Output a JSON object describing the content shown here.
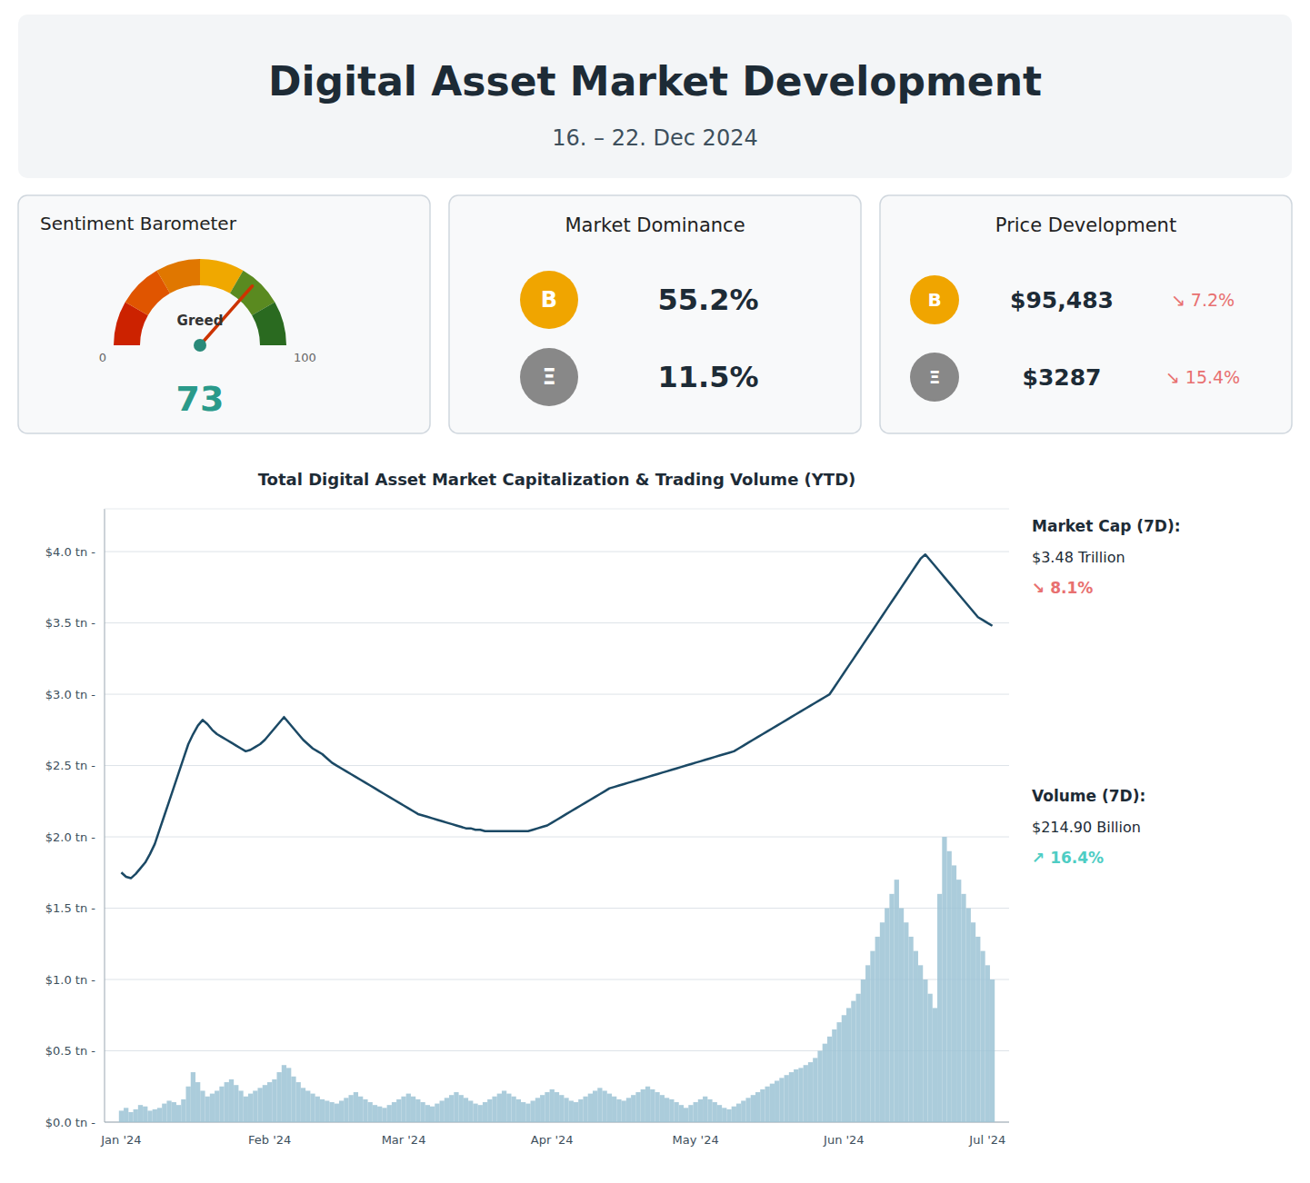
{
  "title": "Digital Asset Market Development",
  "subtitle": "16. – 22. Dec 2024",
  "chart_data": [
    {
      "type": "gauge",
      "title": "Sentiment Barometer",
      "value": 73,
      "annotations": [
        "Greed"
      ],
      "ylim": [
        0,
        100
      ],
      "yticks": [
        0,
        100
      ],
      "colors": [
        "#cc2200",
        "#e05500",
        "#e07700",
        "#f0a800",
        "#5a8a20",
        "#2a6a20"
      ]
    },
    {
      "type": "stat",
      "title": "Market Dominance",
      "categories": [
        "B",
        "Ξ"
      ],
      "values": [
        55.2,
        11.5
      ],
      "value_labels": [
        "55.2%",
        "11.5%"
      ],
      "colors": [
        "#f0a500",
        "#888888"
      ],
      "data_labels": true
    },
    {
      "type": "stat",
      "title": "Price Development",
      "categories": [
        "B",
        "Ξ"
      ],
      "values": [
        95483,
        3287
      ],
      "value_labels": [
        "$95,483",
        "$3287"
      ],
      "colors": [
        "#f0a500",
        "#888888"
      ],
      "data_labels": true,
      "annotations": [
        {
          "text": "↘ 7.2%",
          "color": "#e87070"
        },
        {
          "text": "↘ 15.4%",
          "color": "#e87070"
        }
      ]
    },
    {
      "type": "bar",
      "title": "Total Digital Asset Market Capitalization & Trading Volume (YTD)",
      "categories": [
        "Jan '24",
        null,
        null,
        null,
        null,
        null,
        null,
        null,
        null,
        null,
        null,
        null,
        null,
        null,
        null,
        null,
        null,
        null,
        null,
        null,
        null,
        null,
        null,
        null,
        null,
        null,
        null,
        null,
        null,
        null,
        null,
        "Feb '24",
        null,
        null,
        null,
        null,
        null,
        null,
        null,
        null,
        null,
        null,
        null,
        null,
        null,
        null,
        null,
        null,
        null,
        null,
        null,
        null,
        null,
        null,
        null,
        null,
        null,
        null,
        null,
        "Mar '24",
        null,
        null,
        null,
        null,
        null,
        null,
        null,
        null,
        null,
        null,
        null,
        null,
        null,
        null,
        null,
        null,
        null,
        null,
        null,
        null,
        null,
        null,
        null,
        null,
        null,
        null,
        null,
        null,
        null,
        null,
        "Apr '24",
        null,
        null,
        null,
        null,
        null,
        null,
        null,
        null,
        null,
        null,
        null,
        null,
        null,
        null,
        null,
        null,
        null,
        null,
        null,
        null,
        null,
        null,
        null,
        null,
        null,
        null,
        null,
        null,
        null,
        "May '24",
        null,
        null,
        null,
        null,
        null,
        null,
        null,
        null,
        null,
        null,
        null,
        null,
        null,
        null,
        null,
        null,
        null,
        null,
        null,
        null,
        null,
        null,
        null,
        null,
        null,
        null,
        null,
        null,
        null,
        null,
        "Jun '24",
        null,
        null,
        null,
        null,
        null,
        null,
        null,
        null,
        null,
        null,
        null,
        null,
        null,
        null,
        null,
        null,
        null,
        null,
        null,
        null,
        null,
        null,
        null,
        null,
        null,
        null,
        null,
        null,
        null,
        "Jul '24",
        null
      ],
      "series": [
        {
          "type": "bar",
          "color": "#9cc3d5",
          "values": [
            0.08,
            0.1,
            0.07,
            0.09,
            0.12,
            0.11,
            0.08,
            0.09,
            0.1,
            0.13,
            0.15,
            0.14,
            0.12,
            0.16,
            0.25,
            0.35,
            0.28,
            0.22,
            0.18,
            0.2,
            0.22,
            0.25,
            0.28,
            0.3,
            0.26,
            0.22,
            0.18,
            0.2,
            0.22,
            0.24,
            0.26,
            0.28,
            0.3,
            0.35,
            0.4,
            0.38,
            0.32,
            0.28,
            0.24,
            0.22,
            0.2,
            0.18,
            0.16,
            0.15,
            0.14,
            0.13,
            0.15,
            0.17,
            0.19,
            0.21,
            0.18,
            0.16,
            0.14,
            0.12,
            0.11,
            0.1,
            0.12,
            0.14,
            0.16,
            0.18,
            0.2,
            0.18,
            0.16,
            0.14,
            0.12,
            0.11,
            0.13,
            0.15,
            0.17,
            0.19,
            0.21,
            0.19,
            0.17,
            0.15,
            0.13,
            0.12,
            0.14,
            0.16,
            0.18,
            0.2,
            0.22,
            0.2,
            0.18,
            0.16,
            0.14,
            0.13,
            0.15,
            0.17,
            0.19,
            0.21,
            0.23,
            0.21,
            0.19,
            0.17,
            0.15,
            0.14,
            0.16,
            0.18,
            0.2,
            0.22,
            0.24,
            0.22,
            0.2,
            0.18,
            0.16,
            0.15,
            0.17,
            0.19,
            0.21,
            0.23,
            0.25,
            0.23,
            0.21,
            0.19,
            0.17,
            0.16,
            0.14,
            0.12,
            0.1,
            0.12,
            0.14,
            0.16,
            0.18,
            0.16,
            0.14,
            0.12,
            0.1,
            0.09,
            0.11,
            0.13,
            0.15,
            0.17,
            0.19,
            0.21,
            0.23,
            0.25,
            0.27,
            0.29,
            0.31,
            0.33,
            0.35,
            0.37,
            0.38,
            0.4,
            0.42,
            0.45,
            0.5,
            0.55,
            0.6,
            0.65,
            0.7,
            0.75,
            0.8,
            0.85,
            0.9,
            1.0,
            1.1,
            1.2,
            1.3,
            1.4,
            1.5,
            1.6,
            1.7,
            1.5,
            1.4,
            1.3,
            1.2,
            1.1,
            1.0,
            0.9,
            0.8,
            1.6,
            2.0,
            1.9,
            1.8,
            1.7,
            1.6,
            1.5,
            1.4,
            1.3,
            1.2,
            1.1,
            1.0
          ]
        },
        {
          "type": "line",
          "color": "#1b4965",
          "values": [
            1.75,
            1.72,
            1.71,
            1.74,
            1.78,
            1.82,
            1.88,
            1.95,
            2.05,
            2.15,
            2.25,
            2.35,
            2.45,
            2.55,
            2.65,
            2.72,
            2.78,
            2.82,
            2.79,
            2.75,
            2.72,
            2.7,
            2.68,
            2.66,
            2.64,
            2.62,
            2.6,
            2.61,
            2.63,
            2.65,
            2.68,
            2.72,
            2.76,
            2.8,
            2.84,
            2.8,
            2.76,
            2.72,
            2.68,
            2.65,
            2.62,
            2.6,
            2.58,
            2.55,
            2.52,
            2.5,
            2.48,
            2.46,
            2.44,
            2.42,
            2.4,
            2.38,
            2.36,
            2.34,
            2.32,
            2.3,
            2.28,
            2.26,
            2.24,
            2.22,
            2.2,
            2.18,
            2.16,
            2.15,
            2.14,
            2.13,
            2.12,
            2.11,
            2.1,
            2.09,
            2.08,
            2.07,
            2.06,
            2.06,
            2.05,
            2.05,
            2.04,
            2.04,
            2.04,
            2.04,
            2.04,
            2.04,
            2.04,
            2.04,
            2.04,
            2.04,
            2.05,
            2.06,
            2.07,
            2.08,
            2.1,
            2.12,
            2.14,
            2.16,
            2.18,
            2.2,
            2.22,
            2.24,
            2.26,
            2.28,
            2.3,
            2.32,
            2.34,
            2.35,
            2.36,
            2.37,
            2.38,
            2.39,
            2.4,
            2.41,
            2.42,
            2.43,
            2.44,
            2.45,
            2.46,
            2.47,
            2.48,
            2.49,
            2.5,
            2.51,
            2.52,
            2.53,
            2.54,
            2.55,
            2.56,
            2.57,
            2.58,
            2.59,
            2.6,
            2.62,
            2.64,
            2.66,
            2.68,
            2.7,
            2.72,
            2.74,
            2.76,
            2.78,
            2.8,
            2.82,
            2.84,
            2.86,
            2.88,
            2.9,
            2.92,
            2.94,
            2.96,
            2.98,
            3.0,
            3.05,
            3.1,
            3.15,
            3.2,
            3.25,
            3.3,
            3.35,
            3.4,
            3.45,
            3.5,
            3.55,
            3.6,
            3.65,
            3.7,
            3.75,
            3.8,
            3.85,
            3.9,
            3.95,
            3.98,
            3.94,
            3.9,
            3.86,
            3.82,
            3.78,
            3.74,
            3.7,
            3.66,
            3.62,
            3.58,
            3.54,
            3.52,
            3.5,
            3.48
          ]
        }
      ],
      "ylim": [
        0.0,
        4.3
      ],
      "yticks": [
        {
          "value": 0.0,
          "label": "$0.0 tn -"
        },
        {
          "value": 0.5,
          "label": "$0.5 tn -"
        },
        {
          "value": 1.0,
          "label": "$1.0 tn -"
        },
        {
          "value": 1.5,
          "label": "$1.5 tn -"
        },
        {
          "value": 2.0,
          "label": "$2.0 tn -"
        },
        {
          "value": 2.5,
          "label": "$2.5 tn -"
        },
        {
          "value": 3.0,
          "label": "$3.0 tn -"
        },
        {
          "value": 3.5,
          "label": "$3.5 tn -"
        },
        {
          "value": 4.0,
          "label": "$4.0 tn -"
        }
      ],
      "grid": true,
      "annotations": [
        {
          "text": "Market Cap (7D):"
        },
        {
          "text": "$3.48 Trillion"
        },
        {
          "text": "↘ 8.1%",
          "color": "#e87070"
        },
        {
          "text": "Volume (7D):"
        },
        {
          "text": "$214.90 Billion"
        },
        {
          "text": "↗ 16.4%",
          "color": "#4ecdc4"
        }
      ]
    }
  ]
}
